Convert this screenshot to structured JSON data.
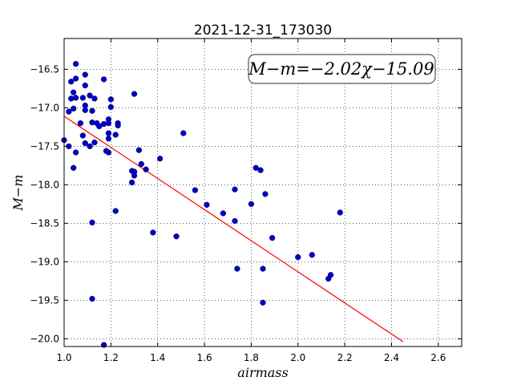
{
  "chart_data": {
    "type": "scatter",
    "title": "2021-12-31_173030",
    "xlabel": "airmass",
    "ylabel": "M−m",
    "xlim": [
      1.0,
      2.7
    ],
    "ylim": [
      -20.1,
      -16.1
    ],
    "x_ticks": [
      "1.0",
      "1.2",
      "1.4",
      "1.6",
      "1.8",
      "2.0",
      "2.2",
      "2.4",
      "2.6"
    ],
    "y_ticks": [
      "−16.5",
      "−17.0",
      "−17.5",
      "−18.0",
      "−18.5",
      "−19.0",
      "−19.5",
      "−20.0"
    ],
    "grid": true,
    "annotation": "M−m=−2.02χ−15.09",
    "fit": {
      "slope": -2.02,
      "intercept": -15.09,
      "x_range": [
        1.0,
        2.45
      ],
      "color": "#ff0000"
    },
    "point_color": "#0000cc",
    "points": [
      [
        1.0,
        -17.42
      ],
      [
        1.02,
        -17.05
      ],
      [
        1.02,
        -17.5
      ],
      [
        1.03,
        -16.66
      ],
      [
        1.03,
        -16.88
      ],
      [
        1.04,
        -17.01
      ],
      [
        1.04,
        -16.8
      ],
      [
        1.05,
        -16.62
      ],
      [
        1.05,
        -16.43
      ],
      [
        1.05,
        -16.87
      ],
      [
        1.04,
        -17.78
      ],
      [
        1.05,
        -17.58
      ],
      [
        1.07,
        -17.2
      ],
      [
        1.08,
        -17.36
      ],
      [
        1.08,
        -16.87
      ],
      [
        1.09,
        -16.57
      ],
      [
        1.09,
        -16.71
      ],
      [
        1.09,
        -16.97
      ],
      [
        1.09,
        -17.03
      ],
      [
        1.09,
        -17.46
      ],
      [
        1.11,
        -16.84
      ],
      [
        1.11,
        -17.5
      ],
      [
        1.12,
        -17.04
      ],
      [
        1.12,
        -17.19
      ],
      [
        1.13,
        -17.45
      ],
      [
        1.13,
        -16.88
      ],
      [
        1.14,
        -17.2
      ],
      [
        1.15,
        -17.24
      ],
      [
        1.17,
        -16.63
      ],
      [
        1.17,
        -17.21
      ],
      [
        1.18,
        -17.56
      ],
      [
        1.19,
        -17.58
      ],
      [
        1.19,
        -17.15
      ],
      [
        1.19,
        -17.2
      ],
      [
        1.19,
        -17.33
      ],
      [
        1.19,
        -17.4
      ],
      [
        1.2,
        -16.99
      ],
      [
        1.2,
        -16.89
      ],
      [
        1.22,
        -17.35
      ],
      [
        1.23,
        -17.2
      ],
      [
        1.23,
        -17.23
      ],
      [
        1.12,
        -18.49
      ],
      [
        1.12,
        -19.48
      ],
      [
        1.17,
        -20.08
      ],
      [
        1.22,
        -18.34
      ],
      [
        1.29,
        -17.82
      ],
      [
        1.29,
        -17.97
      ],
      [
        1.3,
        -17.83
      ],
      [
        1.3,
        -17.88
      ],
      [
        1.3,
        -16.82
      ],
      [
        1.32,
        -17.55
      ],
      [
        1.33,
        -17.73
      ],
      [
        1.35,
        -17.8
      ],
      [
        1.38,
        -18.62
      ],
      [
        1.41,
        -17.66
      ],
      [
        1.48,
        -18.67
      ],
      [
        1.51,
        -17.33
      ],
      [
        1.56,
        -18.07
      ],
      [
        1.61,
        -18.26
      ],
      [
        1.68,
        -18.37
      ],
      [
        1.73,
        -18.06
      ],
      [
        1.73,
        -18.47
      ],
      [
        1.74,
        -19.09
      ],
      [
        1.8,
        -18.25
      ],
      [
        1.82,
        -17.78
      ],
      [
        1.84,
        -17.81
      ],
      [
        1.85,
        -19.09
      ],
      [
        1.85,
        -19.53
      ],
      [
        1.86,
        -18.12
      ],
      [
        1.89,
        -18.69
      ],
      [
        2.0,
        -18.94
      ],
      [
        2.06,
        -18.91
      ],
      [
        2.13,
        -19.22
      ],
      [
        2.14,
        -19.17
      ],
      [
        2.18,
        -18.36
      ]
    ]
  }
}
